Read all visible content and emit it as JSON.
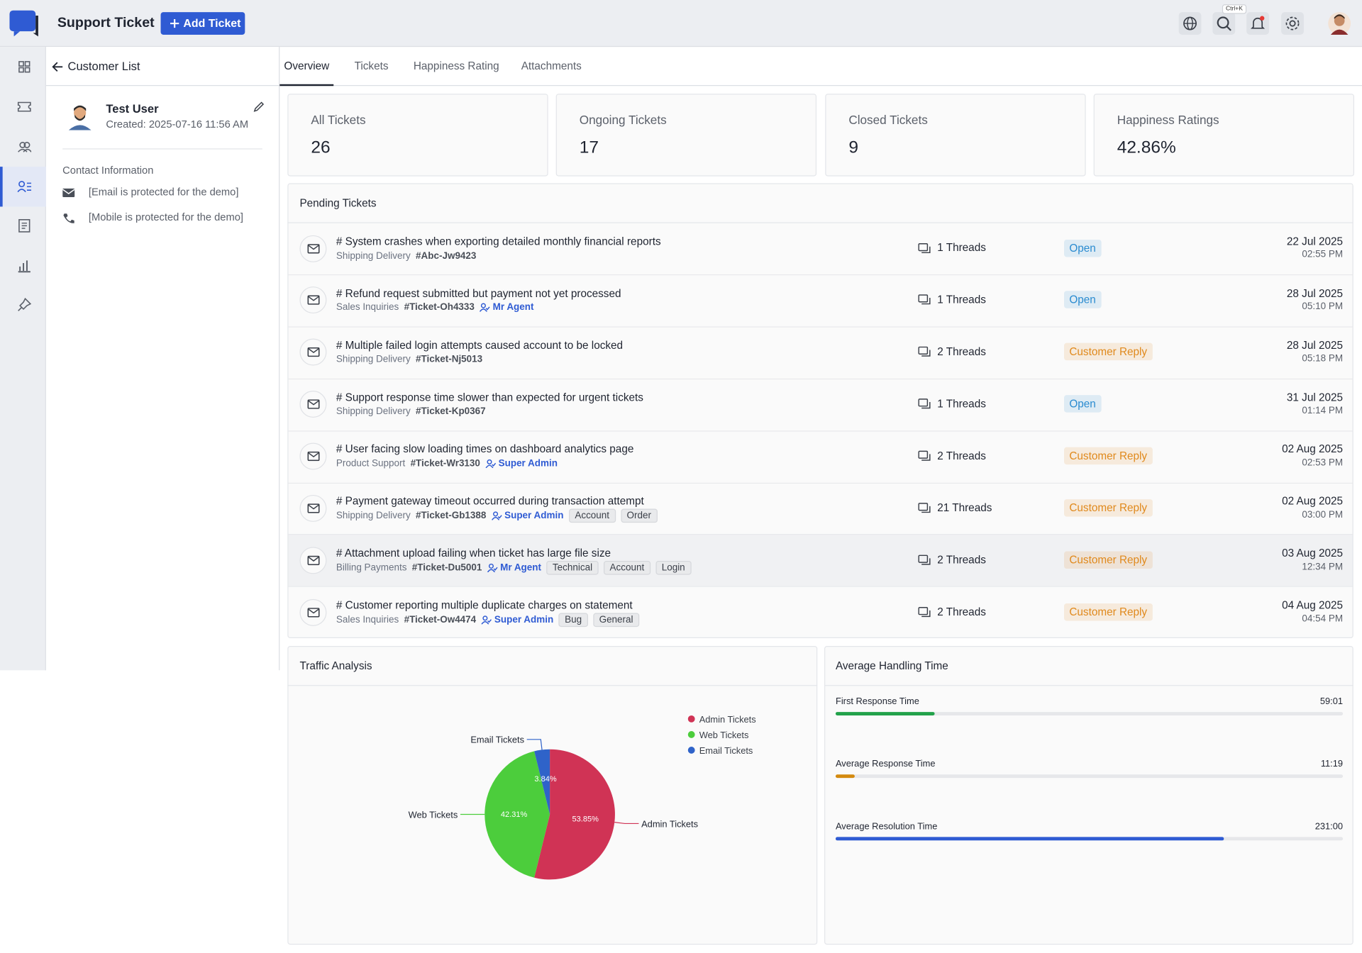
{
  "header": {
    "title": "Support Ticket",
    "add_button": "Add Ticket",
    "shortcut": "Ctrl+K"
  },
  "breadcrumb": "Customer List",
  "tabs": [
    "Overview",
    "Tickets",
    "Happiness Rating",
    "Attachments"
  ],
  "customer": {
    "name": "Test User",
    "created": "Created: 2025-07-16 11:56 AM",
    "contact_heading": "Contact Information",
    "email": "[Email is protected for the demo]",
    "mobile": "[Mobile is protected for the demo]"
  },
  "stats": [
    {
      "label": "All Tickets",
      "value": 26
    },
    {
      "label": "Ongoing Tickets",
      "value": 17
    },
    {
      "label": "Closed Tickets",
      "value": 9
    },
    {
      "label": "Happiness Ratings",
      "value": "42.86%"
    }
  ],
  "pending": {
    "title": "Pending Tickets",
    "tickets": [
      {
        "title": "# System crashes when exporting detailed monthly financial reports",
        "category": "Shipping Delivery",
        "id": "#Abc-Jw9423",
        "threads": "1 Threads",
        "status": "Open",
        "status_color": "#2a8bd0",
        "date": "22 Jul 2025",
        "time": "02:55 PM"
      },
      {
        "title": "# Refund request submitted but payment not yet processed",
        "category": "Sales Inquiries",
        "id": "#Ticket-Oh4333",
        "agent": "Mr Agent",
        "threads": "1 Threads",
        "status": "Open",
        "status_color": "#2a8bd0",
        "date": "28 Jul 2025",
        "time": "05:10 PM"
      },
      {
        "title": "# Multiple failed login attempts caused account to be locked",
        "category": "Shipping Delivery",
        "id": "#Ticket-Nj5013",
        "threads": "2 Threads",
        "status": "Customer Reply",
        "status_color": "#e0891c",
        "date": "28 Jul 2025",
        "time": "05:18 PM"
      },
      {
        "title": "# Support response time slower than expected for urgent tickets",
        "category": "Shipping Delivery",
        "id": "#Ticket-Kp0367",
        "threads": "1 Threads",
        "status": "Open",
        "status_color": "#2a8bd0",
        "date": "31 Jul 2025",
        "time": "01:14 PM"
      },
      {
        "title": "# User facing slow loading times on dashboard analytics page",
        "category": "Product Support",
        "id": "#Ticket-Wr3130",
        "agent": "Super Admin",
        "threads": "2 Threads",
        "status": "Customer Reply",
        "status_color": "#e0891c",
        "date": "02 Aug 2025",
        "time": "02:53 PM"
      },
      {
        "title": "# Payment gateway timeout occurred during transaction attempt",
        "category": "Shipping Delivery",
        "id": "#Ticket-Gb1388",
        "agent": "Super Admin",
        "tags": [
          "Account",
          "Order"
        ],
        "threads": "21 Threads",
        "status": "Customer Reply",
        "status_color": "#e0891c",
        "date": "02 Aug 2025",
        "time": "03:00 PM"
      },
      {
        "title": "# Attachment upload failing when ticket has large file size",
        "category": "Billing Payments",
        "id": "#Ticket-Du5001",
        "agent": "Mr Agent",
        "tags": [
          "Technical",
          "Account",
          "Login"
        ],
        "threads": "2 Threads",
        "status": "Customer Reply",
        "status_color": "#e0891c",
        "date": "03 Aug 2025",
        "time": "12:34 PM"
      },
      {
        "title": "# Customer reporting multiple duplicate charges on statement",
        "category": "Sales Inquiries",
        "id": "#Ticket-Ow4474",
        "agent": "Super Admin",
        "tags": [
          "Bug",
          "General"
        ],
        "threads": "2 Threads",
        "status": "Customer Reply",
        "status_color": "#e0891c",
        "date": "04 Aug 2025",
        "time": "04:54 PM"
      }
    ]
  },
  "traffic": {
    "title": "Traffic Analysis",
    "chart_data": {
      "type": "pie",
      "categories": [
        "Admin Tickets",
        "Web Tickets",
        "Email Tickets"
      ],
      "values": [
        53.85,
        42.31,
        3.84
      ],
      "value_labels": [
        "53.85%",
        "42.31%",
        "3.84%"
      ],
      "colors": [
        "#d03355",
        "#4ccd3c",
        "#2f63c9"
      ]
    }
  },
  "handling": {
    "title": "Average Handling Time",
    "metrics": [
      {
        "label": "First Response Time",
        "value": "59:01",
        "fill_percent": 19.5,
        "color": "#22a24a"
      },
      {
        "label": "Average Response Time",
        "value": "11:19",
        "fill_percent": 3.8,
        "color": "#d48a0f"
      },
      {
        "label": "Average Resolution Time",
        "value": "231:00",
        "fill_percent": 76.5,
        "color": "#2f5bd3"
      }
    ]
  }
}
